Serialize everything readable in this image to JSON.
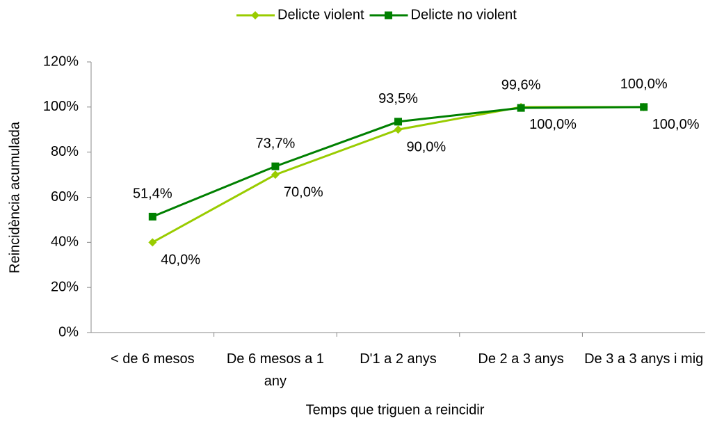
{
  "chart_data": {
    "type": "line",
    "x_label": "Temps que triguen a reincidir",
    "y_label": "Reincidència acumulada",
    "categories": [
      "< de 6 mesos",
      "De 6 mesos a 1 any",
      "D'1 a 2 anys",
      "De 2 a 3 anys",
      "De 3 a 3 anys i mig"
    ],
    "series": [
      {
        "name": "Delicte violent",
        "color": "#99cc00",
        "marker": "diamond",
        "values": [
          40,
          70,
          90,
          100,
          100
        ],
        "value_labels": [
          "40,0%",
          "70,0%",
          "90,0%",
          "100,0%",
          "100,0%"
        ]
      },
      {
        "name": "Delicte no violent",
        "color": "#008000",
        "marker": "square",
        "values": [
          51.4,
          73.7,
          93.5,
          99.6,
          100
        ],
        "value_labels": [
          "51,4%",
          "73,7%",
          "93,5%",
          "99,6%",
          "100,0%"
        ]
      }
    ],
    "ylim": [
      0,
      120
    ],
    "yticks": [
      {
        "value": 0,
        "label": "0%"
      },
      {
        "value": 20,
        "label": "20%"
      },
      {
        "value": 40,
        "label": "40%"
      },
      {
        "value": 60,
        "label": "60%"
      },
      {
        "value": 80,
        "label": "80%"
      },
      {
        "value": 100,
        "label": "100%"
      },
      {
        "value": 120,
        "label": "120%"
      }
    ],
    "grid": false,
    "legend": "top"
  }
}
